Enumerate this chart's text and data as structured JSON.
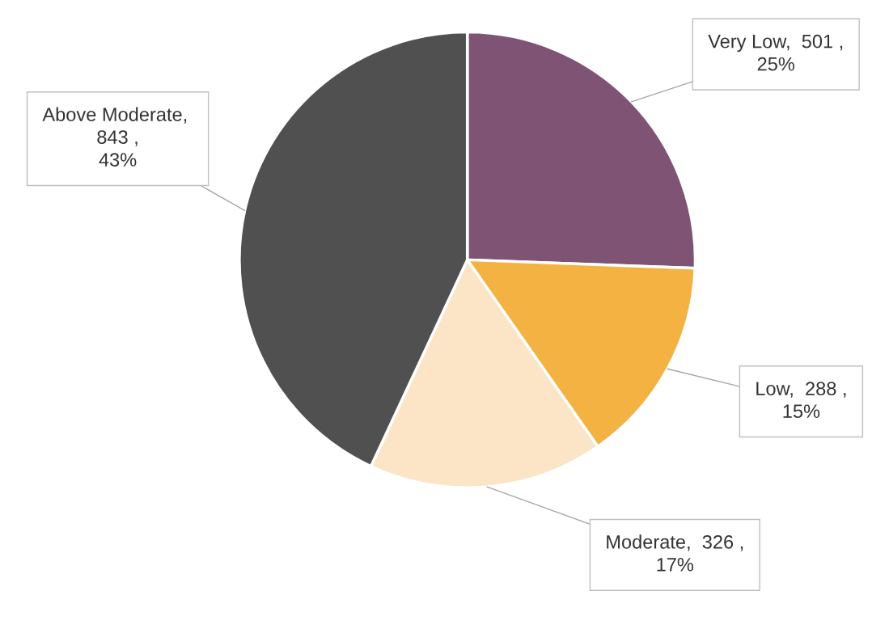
{
  "chart_data": {
    "type": "pie",
    "categories": [
      "Very Low",
      "Low",
      "Moderate",
      "Above Moderate"
    ],
    "values": [
      501,
      288,
      326,
      843
    ],
    "value_labels": [
      ",  501 , 25%",
      ",  288 , 15%",
      ",  326 , 17%",
      ",  843 , 43%"
    ],
    "colors": [
      "#7f5374",
      "#f4b242",
      "#fbe5c6",
      "#505050"
    ]
  }
}
